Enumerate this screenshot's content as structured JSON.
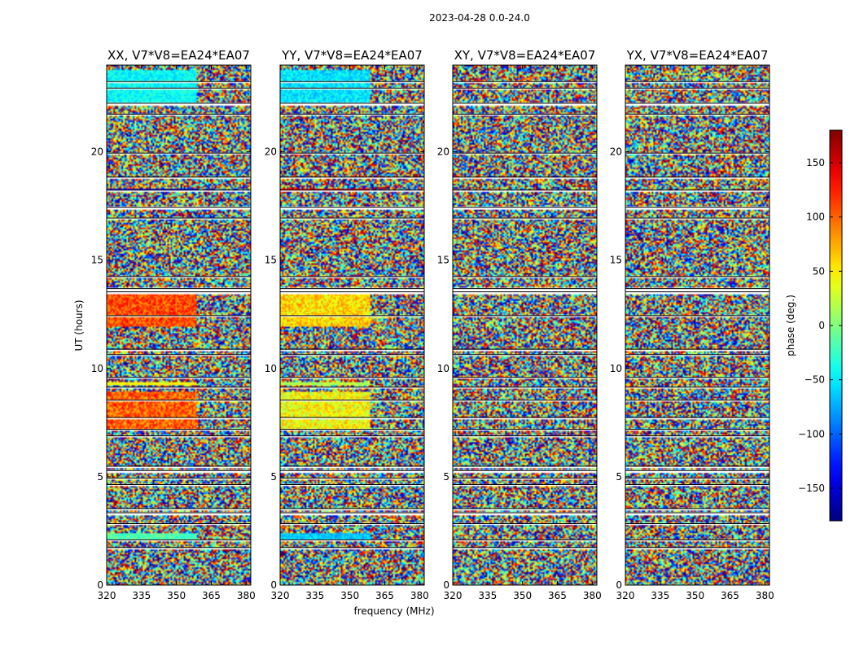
{
  "chart_data": {
    "type": "heatmap",
    "title": "2023-04-28 0.0-24.0",
    "xlabel": "frequency (MHz)",
    "ylabel": "UT (hours)",
    "xlim": [
      320,
      382
    ],
    "ylim": [
      0,
      24
    ],
    "xticks": [
      320,
      335,
      350,
      365,
      380
    ],
    "yticks": [
      0,
      5,
      10,
      15,
      20
    ],
    "panels": [
      {
        "title": "XX, V7*V8=EA24*EA07"
      },
      {
        "title": "YY, V7*V8=EA24*EA07"
      },
      {
        "title": "XY, V7*V8=EA24*EA07"
      },
      {
        "title": "YX, V7*V8=EA24*EA07"
      }
    ],
    "colorbar": {
      "label": "phase (deg.)",
      "range": [
        -180,
        180
      ],
      "ticks": [
        150,
        100,
        50,
        0,
        -50,
        -100,
        -150
      ],
      "tick_labels": [
        "150",
        "100",
        "50",
        "0",
        "−50",
        "−100",
        "−150"
      ],
      "colormap": "jet"
    },
    "flagged_gaps_hours": [
      1.7,
      2.05,
      2.8,
      3.3,
      3.5,
      4.6,
      4.9,
      5.25,
      5.45,
      6.85,
      7.15,
      7.7,
      8.5,
      9.1,
      9.55,
      10.6,
      10.85,
      12.4,
      13.5,
      13.65,
      14.2,
      16.9,
      17.4,
      18.2,
      18.8,
      19.9,
      21.7,
      22.2,
      22.9,
      23.2
    ]
  }
}
